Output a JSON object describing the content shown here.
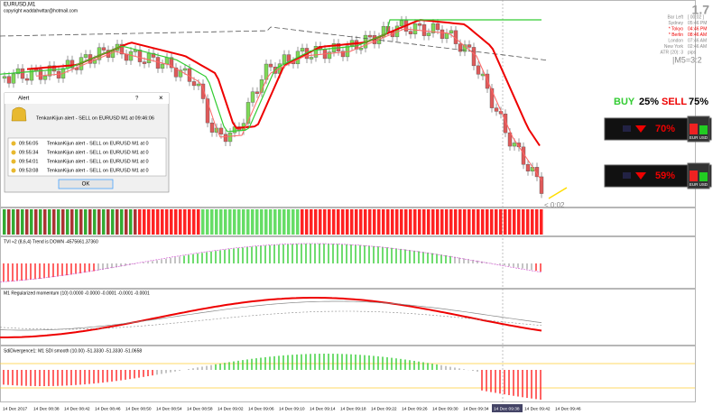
{
  "header": {
    "symbol": "EURUSD,M1",
    "copyright": "copyright waddahwttar@hotmail.com"
  },
  "info_panel": {
    "price": "1.7",
    "clock": [
      {
        "city": "Bar Left",
        "time": "[ 00:02 ]"
      },
      {
        "city": "Sydney",
        "time": "05:46 PM"
      },
      {
        "city": "* Tokyo",
        "time": "04:46 PM"
      },
      {
        "city": "* Berlin",
        "time": "08:46 AM"
      },
      {
        "city": "London",
        "time": "07:46 AM"
      },
      {
        "city": "New York",
        "time": "02:46 AM"
      },
      {
        "city": "ATR (20): 3",
        "time": "pips"
      }
    ],
    "ratio": "|M5=3:2"
  },
  "signal": {
    "buy": "BUY",
    "buy_pct": "25%",
    "sell": "SELL",
    "sell_pct": "75%"
  },
  "gauges": [
    {
      "value": "70%",
      "pair": "EUR USD"
    },
    {
      "value": "59%",
      "pair": "EUR USD"
    }
  ],
  "countdown": "< 0:02",
  "alert": {
    "title": "Alert",
    "help": "?",
    "message": "TenkanKijun alert - SELL on EURUSD M1 at 09:46:06",
    "rows": [
      {
        "time": "09:56:05",
        "text": "TenkanKijun alert - SELL on EURUSD M1 at 0"
      },
      {
        "time": "09:55:34",
        "text": "TenkanKijun alert - SELL on EURUSD M1 at 0"
      },
      {
        "time": "09:54:01",
        "text": "TenkanKijun alert - SELL on EURUSD M1 at 0"
      },
      {
        "time": "09:53:08",
        "text": "TenkanKijun alert - SELL on EURUSD M1 at 0"
      }
    ],
    "button": "OK"
  },
  "panels": {
    "tvi": "TVI ≈2 (8,6,4) Trend is DOWN -4575661.37360",
    "momentum": "M1 Regularized momentum (10) 0.0000 -0.0000 -0.0001 -0.0001 -0.0001",
    "sdi": "SdiDivergence1: M1   SDI smooth (10.00) -51.3330 -51.3330 -51.0658"
  },
  "time_axis": [
    "14 Dec 2017",
    "14 Dec 08:38",
    "14 Dec 08:42",
    "14 Dec 08:46",
    "14 Dec 08:50",
    "14 Dec 08:54",
    "14 Dec 08:58",
    "14 Dec 09:02",
    "14 Dec 09:06",
    "14 Dec 09:10",
    "14 Dec 09:14",
    "14 Dec 09:18",
    "14 Dec 09:22",
    "14 Dec 09:26",
    "14 Dec 09:30",
    "14 Dec 09:34",
    "14 Dec 09:38",
    "14 Dec 09:42",
    "14 Dec 09:46"
  ]
}
